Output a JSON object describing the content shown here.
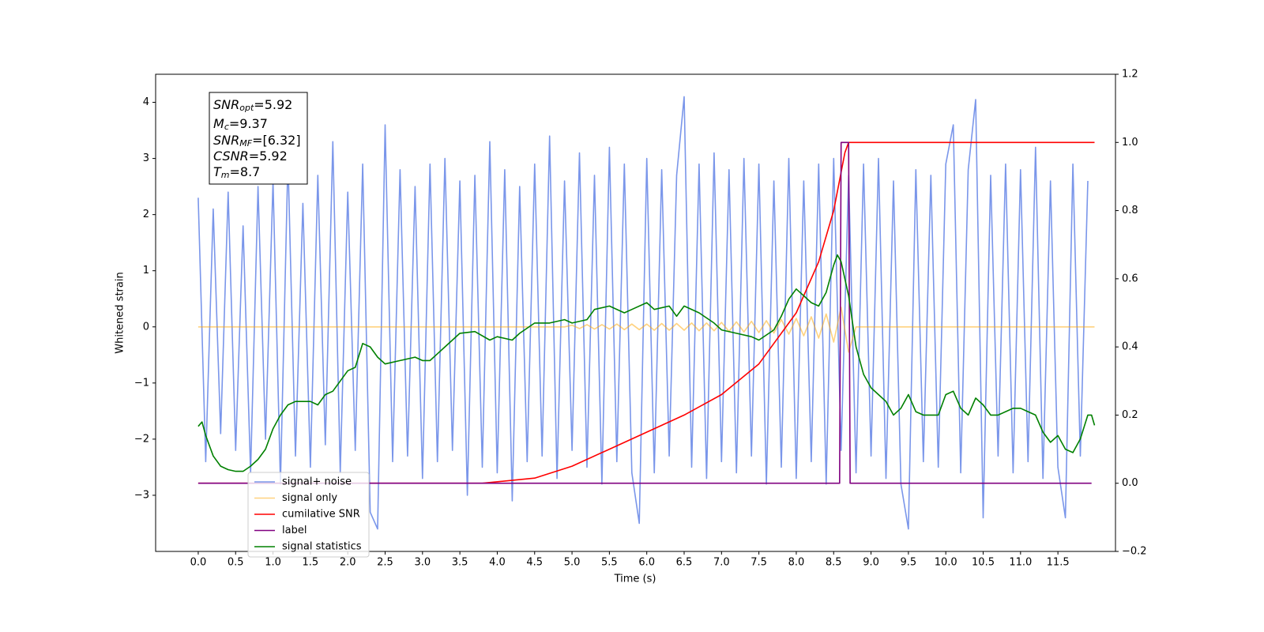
{
  "chart_data": {
    "type": "line",
    "xlabel": "Time (s)",
    "ylabel": "Whitened strain",
    "xlim": [
      -0.57,
      12.27
    ],
    "ylim": [
      -4.0,
      4.5
    ],
    "y2lim": [
      -0.2,
      1.2
    ],
    "xticks": [
      {
        "value": 0,
        "label": "0.0"
      },
      {
        "value": 0.5,
        "label": "0.5"
      },
      {
        "value": 1,
        "label": "1.0"
      },
      {
        "value": 1.5,
        "label": "1.5"
      },
      {
        "value": 2,
        "label": "2.0"
      },
      {
        "value": 2.5,
        "label": "2.5"
      },
      {
        "value": 3,
        "label": "3.0"
      },
      {
        "value": 3.5,
        "label": "3.5"
      },
      {
        "value": 4,
        "label": "4.0"
      },
      {
        "value": 4.5,
        "label": "4.5"
      },
      {
        "value": 5,
        "label": "5.0"
      },
      {
        "value": 5.5,
        "label": "5.5"
      },
      {
        "value": 6,
        "label": "6.0"
      },
      {
        "value": 6.5,
        "label": "6.5"
      },
      {
        "value": 7,
        "label": "7.0"
      },
      {
        "value": 7.5,
        "label": "7.5"
      },
      {
        "value": 8,
        "label": "8.0"
      },
      {
        "value": 8.5,
        "label": "8.5"
      },
      {
        "value": 9,
        "label": "9.0"
      },
      {
        "value": 9.5,
        "label": "9.5"
      },
      {
        "value": 10,
        "label": "10.0"
      },
      {
        "value": 10.5,
        "label": "10.5"
      },
      {
        "value": 11,
        "label": "11.0"
      },
      {
        "value": 11.5,
        "label": "11.5"
      }
    ],
    "yticks": [
      {
        "value": -3,
        "label": "−3"
      },
      {
        "value": -2,
        "label": "−2"
      },
      {
        "value": -1,
        "label": "−1"
      },
      0,
      1,
      2,
      3,
      4
    ],
    "y2ticks": [
      {
        "value": -0.2,
        "label": "−0.2"
      },
      {
        "value": 0,
        "label": "0.0"
      },
      {
        "value": 0.2,
        "label": "0.2"
      },
      {
        "value": 0.4,
        "label": "0.4"
      },
      {
        "value": 0.6,
        "label": "0.6"
      },
      {
        "value": 0.8,
        "label": "0.8"
      },
      {
        "value": 1,
        "label": "1.0"
      },
      {
        "value": 1.2,
        "label": "1.2"
      }
    ],
    "legend": "lower left",
    "annotation": [
      {
        "base": "SNR",
        "sub": "opt",
        "text": "=5.92"
      },
      {
        "base": "M",
        "sub": "c",
        "text": "=9.37"
      },
      {
        "base": "SNR",
        "sub": "MF",
        "text": "=[6.32]"
      },
      {
        "base": "CSNR",
        "sub": null,
        "text": "=5.92"
      },
      {
        "base": "T",
        "sub": "m",
        "text": "=8.7"
      }
    ],
    "series": [
      {
        "name": "signal+ noise",
        "color": "#4169e1",
        "alpha": 0.7,
        "axis": "y",
        "x": [
          0,
          0.1,
          0.2,
          0.3,
          0.4,
          0.5,
          0.6,
          0.7,
          0.8,
          0.9,
          1,
          1.1,
          1.2,
          1.3,
          1.4,
          1.5,
          1.6,
          1.7,
          1.8,
          1.9,
          2,
          2.1,
          2.2,
          2.3,
          2.4,
          2.5,
          2.6,
          2.7,
          2.8,
          2.9,
          3,
          3.1,
          3.2,
          3.3,
          3.4,
          3.5,
          3.6,
          3.7,
          3.8,
          3.9,
          4,
          4.1,
          4.2,
          4.3,
          4.4,
          4.5,
          4.6,
          4.7,
          4.8,
          4.9,
          5,
          5.1,
          5.2,
          5.3,
          5.4,
          5.5,
          5.6,
          5.7,
          5.8,
          5.9,
          6,
          6.1,
          6.2,
          6.3,
          6.4,
          6.5,
          6.6,
          6.7,
          6.8,
          6.9,
          7,
          7.1,
          7.2,
          7.3,
          7.4,
          7.5,
          7.6,
          7.7,
          7.8,
          7.9,
          8,
          8.1,
          8.2,
          8.3,
          8.4,
          8.5,
          8.6,
          8.7,
          8.8,
          8.9,
          9,
          9.1,
          9.2,
          9.3,
          9.4,
          9.5,
          9.6,
          9.7,
          9.8,
          9.9,
          10,
          10.1,
          10.2,
          10.3,
          10.4,
          10.5,
          10.6,
          10.7,
          10.8,
          10.9,
          11,
          11.1,
          11.2,
          11.3,
          11.4,
          11.5,
          11.6,
          11.7,
          11.8,
          11.9
        ],
        "values": [
          2.3,
          -2.4,
          2.1,
          -1.9,
          2.4,
          -2.2,
          1.8,
          -2.6,
          2.5,
          -2.0,
          2.6,
          -2.8,
          3.0,
          -2.3,
          2.2,
          -2.5,
          2.7,
          -2.1,
          3.3,
          -2.6,
          2.4,
          -2.2,
          2.9,
          -3.3,
          -3.6,
          3.6,
          -2.4,
          2.8,
          -2.3,
          2.5,
          -2.7,
          2.9,
          -2.4,
          3.0,
          -2.2,
          2.6,
          -3.0,
          2.7,
          -2.5,
          3.3,
          -2.6,
          2.8,
          -3.1,
          2.5,
          -2.4,
          2.9,
          -2.3,
          3.4,
          -2.7,
          2.6,
          -2.2,
          3.1,
          -2.5,
          2.7,
          -2.8,
          3.2,
          -2.4,
          2.9,
          -2.6,
          -3.5,
          3.0,
          -2.6,
          2.8,
          -2.3,
          2.7,
          4.1,
          -2.5,
          2.9,
          -2.7,
          3.1,
          -2.4,
          2.8,
          -2.6,
          3.0,
          -2.3,
          2.9,
          -2.8,
          2.6,
          -2.5,
          3.0,
          -2.7,
          2.6,
          -2.4,
          2.9,
          -2.8,
          3.0,
          -2.2,
          2.7,
          -2.6,
          2.9,
          -2.3,
          3.0,
          -2.7,
          2.6,
          -2.8,
          -3.6,
          2.8,
          -2.4,
          2.7,
          -2.5,
          2.9,
          3.6,
          -2.6,
          2.8,
          4.05,
          -3.4,
          2.7,
          -2.3,
          2.9,
          -2.6,
          2.8,
          -2.4,
          3.2,
          -2.7,
          2.6,
          -2.5,
          -3.4,
          2.9,
          -2.3,
          2.6
        ]
      },
      {
        "name": "signal only",
        "color": "#ffa500",
        "alpha": 0.5,
        "axis": "y",
        "x": [
          0,
          4.9,
          5,
          5.1,
          5.2,
          5.3,
          5.4,
          5.5,
          5.6,
          5.7,
          5.8,
          5.9,
          6,
          6.1,
          6.2,
          6.3,
          6.4,
          6.5,
          6.6,
          6.7,
          6.8,
          6.9,
          7,
          7.1,
          7.2,
          7.3,
          7.4,
          7.5,
          7.6,
          7.7,
          7.8,
          7.9,
          8,
          8.1,
          8.2,
          8.3,
          8.4,
          8.5,
          8.6,
          8.7,
          8.8,
          11.99
        ],
        "values": [
          0,
          0,
          0.03,
          -0.03,
          0.04,
          -0.04,
          0.04,
          -0.04,
          0.05,
          -0.05,
          0.05,
          -0.05,
          0.05,
          -0.06,
          0.06,
          -0.06,
          0.06,
          -0.06,
          0.07,
          -0.07,
          0.07,
          -0.07,
          0.08,
          -0.08,
          0.09,
          -0.09,
          0.1,
          -0.1,
          0.11,
          -0.11,
          0.13,
          -0.13,
          0.15,
          -0.16,
          0.18,
          -0.2,
          0.23,
          -0.27,
          0.35,
          -0.45,
          0,
          0
        ]
      },
      {
        "name": "cumilative SNR",
        "color": "#ff0000",
        "alpha": 1,
        "axis": "y2",
        "x": [
          0,
          3.8,
          4.5,
          5,
          5.5,
          6,
          6.5,
          7,
          7.5,
          8,
          8.3,
          8.5,
          8.65,
          8.7,
          11.99
        ],
        "values": [
          0,
          0,
          0.015,
          0.05,
          0.1,
          0.15,
          0.2,
          0.26,
          0.35,
          0.5,
          0.65,
          0.8,
          0.97,
          1.0,
          1.0
        ]
      },
      {
        "name": "label",
        "color": "#800080",
        "alpha": 1,
        "axis": "y2",
        "x": [
          0,
          8.58,
          8.6,
          8.7,
          8.72,
          11.95
        ],
        "values": [
          0,
          0,
          1,
          1,
          0,
          0
        ]
      },
      {
        "name": "signal statistics",
        "color": "#008000",
        "alpha": 1,
        "axis": "y2",
        "x": [
          0,
          0.05,
          0.1,
          0.2,
          0.3,
          0.4,
          0.5,
          0.6,
          0.7,
          0.8,
          0.9,
          1,
          1.1,
          1.2,
          1.3,
          1.5,
          1.6,
          1.7,
          1.8,
          1.9,
          2,
          2.1,
          2.2,
          2.3,
          2.4,
          2.5,
          2.7,
          2.9,
          3,
          3.1,
          3.2,
          3.3,
          3.5,
          3.7,
          3.9,
          4,
          4.2,
          4.3,
          4.5,
          4.7,
          4.9,
          5,
          5.2,
          5.3,
          5.5,
          5.7,
          5.8,
          6,
          6.1,
          6.3,
          6.4,
          6.5,
          6.7,
          6.9,
          7,
          7.2,
          7.4,
          7.5,
          7.7,
          7.8,
          7.9,
          8,
          8.1,
          8.2,
          8.3,
          8.4,
          8.5,
          8.55,
          8.6,
          8.7,
          8.8,
          8.9,
          9,
          9.1,
          9.2,
          9.3,
          9.4,
          9.5,
          9.6,
          9.7,
          9.8,
          9.9,
          10,
          10.1,
          10.2,
          10.3,
          10.4,
          10.5,
          10.6,
          10.7,
          10.8,
          10.9,
          11,
          11.1,
          11.2,
          11.3,
          11.4,
          11.5,
          11.6,
          11.7,
          11.8,
          11.9,
          11.95,
          11.99
        ],
        "values": [
          0.167,
          0.18,
          0.14,
          0.08,
          0.05,
          0.04,
          0.035,
          0.035,
          0.05,
          0.07,
          0.1,
          0.16,
          0.2,
          0.23,
          0.24,
          0.24,
          0.23,
          0.26,
          0.27,
          0.3,
          0.33,
          0.34,
          0.41,
          0.4,
          0.37,
          0.35,
          0.36,
          0.37,
          0.36,
          0.36,
          0.38,
          0.4,
          0.44,
          0.445,
          0.42,
          0.43,
          0.42,
          0.44,
          0.47,
          0.47,
          0.48,
          0.47,
          0.48,
          0.51,
          0.52,
          0.5,
          0.51,
          0.53,
          0.51,
          0.52,
          0.49,
          0.52,
          0.5,
          0.47,
          0.45,
          0.44,
          0.43,
          0.42,
          0.45,
          0.49,
          0.54,
          0.57,
          0.55,
          0.53,
          0.52,
          0.56,
          0.64,
          0.67,
          0.65,
          0.55,
          0.4,
          0.32,
          0.28,
          0.26,
          0.24,
          0.2,
          0.22,
          0.26,
          0.21,
          0.2,
          0.2,
          0.2,
          0.26,
          0.27,
          0.22,
          0.2,
          0.25,
          0.23,
          0.2,
          0.2,
          0.21,
          0.22,
          0.22,
          0.21,
          0.2,
          0.15,
          0.12,
          0.14,
          0.1,
          0.09,
          0.13,
          0.2,
          0.2,
          0.17
        ]
      }
    ]
  }
}
